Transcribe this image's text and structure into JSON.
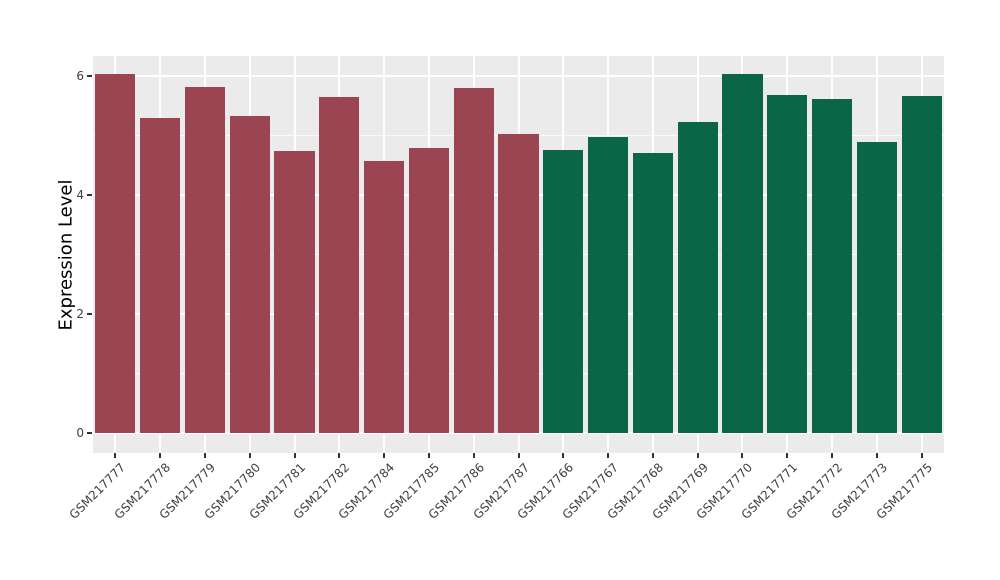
{
  "chart_data": {
    "type": "bar",
    "title": "",
    "xlabel": "",
    "ylabel": "Expression Level",
    "ylim": [
      0,
      6.35
    ],
    "yticks": [
      0,
      2,
      4,
      6
    ],
    "yticks_minor": [
      1,
      3,
      5
    ],
    "grid": "on",
    "legend_position": "none",
    "categories": [
      "GSM217777",
      "GSM217778",
      "GSM217779",
      "GSM217780",
      "GSM217781",
      "GSM217782",
      "GSM217784",
      "GSM217785",
      "GSM217786",
      "GSM217787",
      "GSM217766",
      "GSM217767",
      "GSM217768",
      "GSM217769",
      "GSM217770",
      "GSM217771",
      "GSM217772",
      "GSM217773",
      "GSM217775"
    ],
    "values": [
      6.04,
      5.3,
      5.82,
      5.33,
      4.74,
      5.65,
      4.58,
      4.79,
      5.8,
      5.02,
      4.76,
      4.97,
      4.7,
      5.23,
      6.03,
      5.68,
      5.62,
      4.89,
      5.66
    ],
    "groups": [
      "group1",
      "group1",
      "group1",
      "group1",
      "group1",
      "group1",
      "group1",
      "group1",
      "group1",
      "group1",
      "group2",
      "group2",
      "group2",
      "group2",
      "group2",
      "group2",
      "group2",
      "group2",
      "group2"
    ],
    "group_colors": {
      "group1": "#9B4452",
      "group2": "#0A6647"
    }
  },
  "style": {
    "background": "#FFFFFF",
    "panel_bg": "#EBEBEB",
    "grid_color": "#FFFFFF",
    "axis_text_color": "#404040",
    "axis_title_color": "#000000",
    "tick_color": "#333333"
  }
}
